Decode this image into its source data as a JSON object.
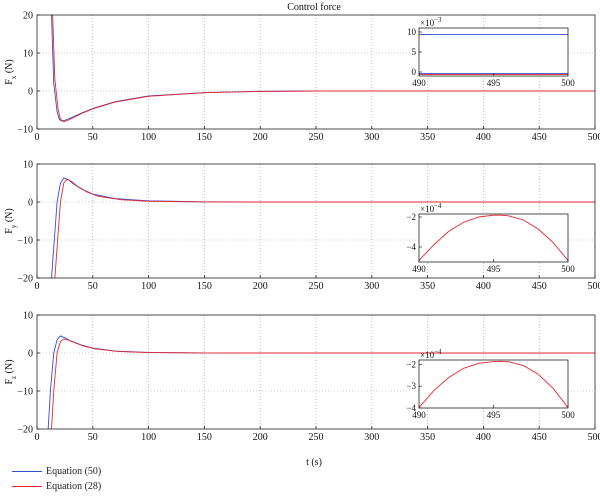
{
  "chart_data": [
    {
      "type": "line",
      "title": "Control force",
      "ylabel_main": "F",
      "ylabel_sub": "x",
      "ylabel_unit": " (N)",
      "xlim": [
        0,
        500
      ],
      "ylim": [
        -10,
        20
      ],
      "xticks": [
        0,
        50,
        100,
        150,
        200,
        250,
        300,
        350,
        400,
        450,
        500
      ],
      "yticks": [
        -10,
        0,
        10,
        20
      ],
      "grid": true,
      "series": [
        {
          "name": "Equation (50)",
          "color": "#2f4fd0",
          "x": [
            13,
            15,
            18,
            20,
            22,
            25,
            30,
            40,
            50,
            70,
            100,
            150,
            200,
            250,
            300,
            400,
            500
          ],
          "y": [
            20,
            2,
            -5.5,
            -7.5,
            -7.9,
            -7.7,
            -7.1,
            -5.8,
            -4.6,
            -2.8,
            -1.3,
            -0.4,
            -0.1,
            0,
            0,
            0,
            0
          ]
        },
        {
          "name": "Equation (28)",
          "color": "#e8262f",
          "x": [
            14,
            16,
            19,
            21,
            24,
            27,
            32,
            40,
            50,
            70,
            100,
            150,
            200,
            250,
            300,
            400,
            500
          ],
          "y": [
            20,
            3,
            -5,
            -7.4,
            -8.1,
            -7.8,
            -7.1,
            -5.9,
            -4.7,
            -2.9,
            -1.4,
            -0.45,
            -0.12,
            0,
            0,
            0,
            0
          ]
        }
      ],
      "inset": {
        "xlim": [
          490,
          500
        ],
        "ylim": [
          -0.001,
          0.011
        ],
        "xticks": [
          490,
          495,
          500
        ],
        "yticks": [
          0,
          5,
          10
        ],
        "yscale_label": "×10",
        "yscale_exp": "−3",
        "series": [
          {
            "color": "#2f4fd0",
            "x": [
              490,
              500
            ],
            "y": [
              0.0094,
              0.0094
            ]
          },
          {
            "color": "#2f4fd0",
            "x": [
              490,
              500
            ],
            "y": [
              -0.0004,
              -0.0004
            ]
          },
          {
            "color": "#e8262f",
            "x": [
              490,
              500
            ],
            "y": [
              -0.0006,
              -0.0006
            ]
          }
        ]
      }
    },
    {
      "type": "line",
      "ylabel_main": "F",
      "ylabel_sub": "y",
      "ylabel_unit": " (N)",
      "xlim": [
        0,
        500
      ],
      "ylim": [
        -20,
        10
      ],
      "xticks": [
        0,
        50,
        100,
        150,
        200,
        250,
        300,
        350,
        400,
        450,
        500
      ],
      "yticks": [
        -20,
        -10,
        0,
        10
      ],
      "grid": true,
      "series": [
        {
          "name": "Equation (50)",
          "color": "#2f4fd0",
          "x": [
            13,
            15,
            18,
            21,
            24,
            28,
            32,
            40,
            50,
            70,
            100,
            150,
            200,
            300,
            400,
            500
          ],
          "y": [
            -20,
            -12,
            0,
            5,
            6.3,
            5.9,
            4.9,
            3.4,
            2.1,
            0.9,
            0.3,
            0.05,
            0,
            0,
            0,
            0
          ]
        },
        {
          "name": "Equation (28)",
          "color": "#e8262f",
          "x": [
            16,
            18,
            21,
            24,
            27,
            31,
            36,
            45,
            55,
            75,
            100,
            150,
            200,
            300,
            400,
            500
          ],
          "y": [
            -20,
            -12,
            0,
            5,
            6.0,
            5.4,
            4.2,
            2.6,
            1.5,
            0.6,
            0.2,
            0.03,
            0,
            0,
            0,
            0
          ]
        }
      ],
      "inset": {
        "xlim": [
          490,
          500
        ],
        "ylim": [
          -0.0005,
          -0.00018
        ],
        "xticks": [
          490,
          495,
          500
        ],
        "yticks": [
          -4,
          -2
        ],
        "yscale_label": "×10",
        "yscale_exp": "−4",
        "series": [
          {
            "color": "#e8262f",
            "x": [
              490,
              491,
              492,
              493,
              494,
              495,
              495.5,
              496,
              497,
              498,
              499,
              500
            ],
            "y": [
              -0.00049,
              -0.000385,
              -0.000295,
              -0.000235,
              -0.0002,
              -0.000188,
              -0.000188,
              -0.000192,
              -0.00022,
              -0.00028,
              -0.00037,
              -0.00049
            ]
          }
        ]
      }
    },
    {
      "type": "line",
      "ylabel_main": "F",
      "ylabel_sub": "z",
      "ylabel_unit": " (N)",
      "xlabel": "t (s)",
      "xlim": [
        0,
        500
      ],
      "ylim": [
        -20,
        10
      ],
      "xticks": [
        0,
        50,
        100,
        150,
        200,
        250,
        300,
        350,
        400,
        450,
        500
      ],
      "yticks": [
        -20,
        -10,
        0,
        10
      ],
      "grid": true,
      "series": [
        {
          "name": "Equation (50)",
          "color": "#2f4fd0",
          "x": [
            10,
            12,
            15,
            18,
            21,
            25,
            30,
            40,
            50,
            70,
            100,
            150,
            200,
            300,
            400,
            500
          ],
          "y": [
            -20,
            -10,
            0,
            3.5,
            4.5,
            4.0,
            3.2,
            2.1,
            1.3,
            0.5,
            0.15,
            0.02,
            0,
            0,
            0,
            0
          ]
        },
        {
          "name": "Equation (28)",
          "color": "#e8262f",
          "x": [
            13,
            15,
            18,
            21,
            24,
            28,
            33,
            42,
            52,
            72,
            100,
            150,
            200,
            300,
            400,
            500
          ],
          "y": [
            -20,
            -10,
            0,
            3.0,
            3.7,
            3.4,
            2.8,
            1.8,
            1.1,
            0.4,
            0.12,
            0.02,
            0,
            0,
            0,
            0
          ]
        }
      ],
      "inset": {
        "xlim": [
          490,
          500
        ],
        "ylim": [
          -0.0004,
          -0.00018
        ],
        "xticks": [
          490,
          495,
          500
        ],
        "yticks": [
          -4,
          -3,
          -2
        ],
        "yscale_label": "×10",
        "yscale_exp": "−4",
        "series": [
          {
            "color": "#e8262f",
            "x": [
              490,
              491,
              492,
              493,
              494,
              495,
              495.5,
              496,
              497,
              498,
              499,
              500
            ],
            "y": [
              -0.000398,
              -0.00032,
              -0.00026,
              -0.000218,
              -0.000195,
              -0.000187,
              -0.000186,
              -0.000188,
              -0.000205,
              -0.000245,
              -0.00031,
              -0.000398
            ]
          }
        ]
      }
    }
  ],
  "legend": [
    {
      "label": "Equation (50)",
      "color": "#2f4fd0"
    },
    {
      "label": "Equation (28)",
      "color": "#e8262f"
    }
  ]
}
